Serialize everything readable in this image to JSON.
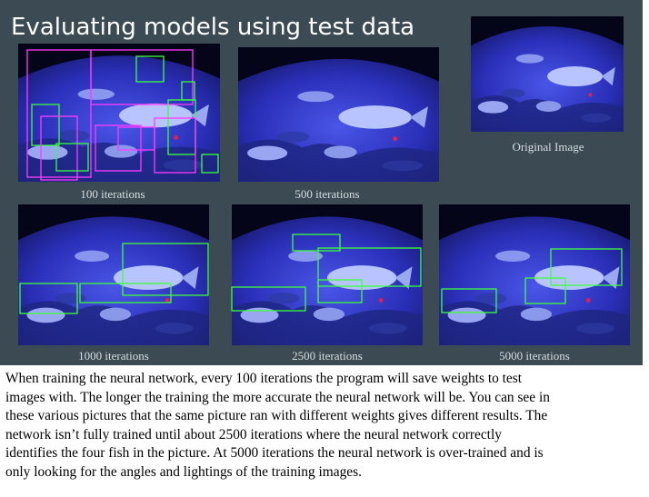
{
  "slide": {
    "title": "Evaluating models using test data",
    "captions": [
      "100 iterations",
      "500 iterations",
      "Original Image",
      "1000 iterations",
      "2500 iterations",
      "5000 iterations"
    ]
  },
  "paragraph": {
    "lines": [
      "When training the neural network, every 100 iterations the program will save weights to test",
      "images with. The longer the training the more accurate the neural network will be. You can see in",
      "these various pictures that the same picture ran with different weights gives different results. The",
      "network isn’t fully trained until about 2500 iterations where the neural network correctly",
      "identifies the four fish in the picture. At 5000 iterations the neural network is over-trained and is",
      "only looking for the angles and lightings of the training images."
    ]
  }
}
